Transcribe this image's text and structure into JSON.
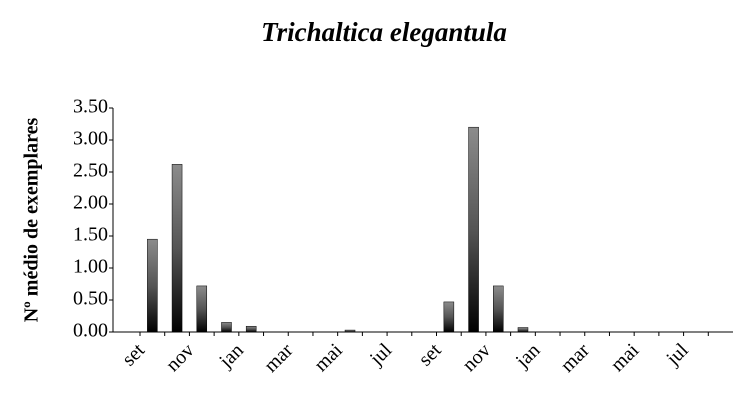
{
  "chart_data": {
    "type": "bar",
    "title": "Trichaltica elegantula",
    "y_label": "Nº médio de exemplares",
    "categories": [
      "set",
      null,
      "nov",
      null,
      "jan",
      null,
      "mar",
      null,
      "mai",
      null,
      "jul",
      null,
      "set",
      null,
      "nov",
      null,
      "jan",
      null,
      "mar",
      null,
      "mai",
      null,
      "jul",
      null
    ],
    "values": [
      1.45,
      2.62,
      0.72,
      0.15,
      0.09,
      0,
      0,
      0,
      0.03,
      0,
      0,
      0,
      0.47,
      3.2,
      0.72,
      0.07,
      0,
      0,
      0,
      0,
      0,
      0,
      0,
      0
    ],
    "color": "#8c8c8c",
    "ylim": [
      0,
      3.5
    ],
    "yticks": [
      {
        "value": 0,
        "label": "0.00"
      },
      {
        "value": 0.5,
        "label": "0.50"
      },
      {
        "value": 1,
        "label": "1.00"
      },
      {
        "value": 1.5,
        "label": "1.50"
      },
      {
        "value": 2,
        "label": "2.00"
      },
      {
        "value": 2.5,
        "label": "2.50"
      },
      {
        "value": 3,
        "label": "3.00"
      },
      {
        "value": 3.5,
        "label": "3.50"
      }
    ],
    "grid": false
  }
}
